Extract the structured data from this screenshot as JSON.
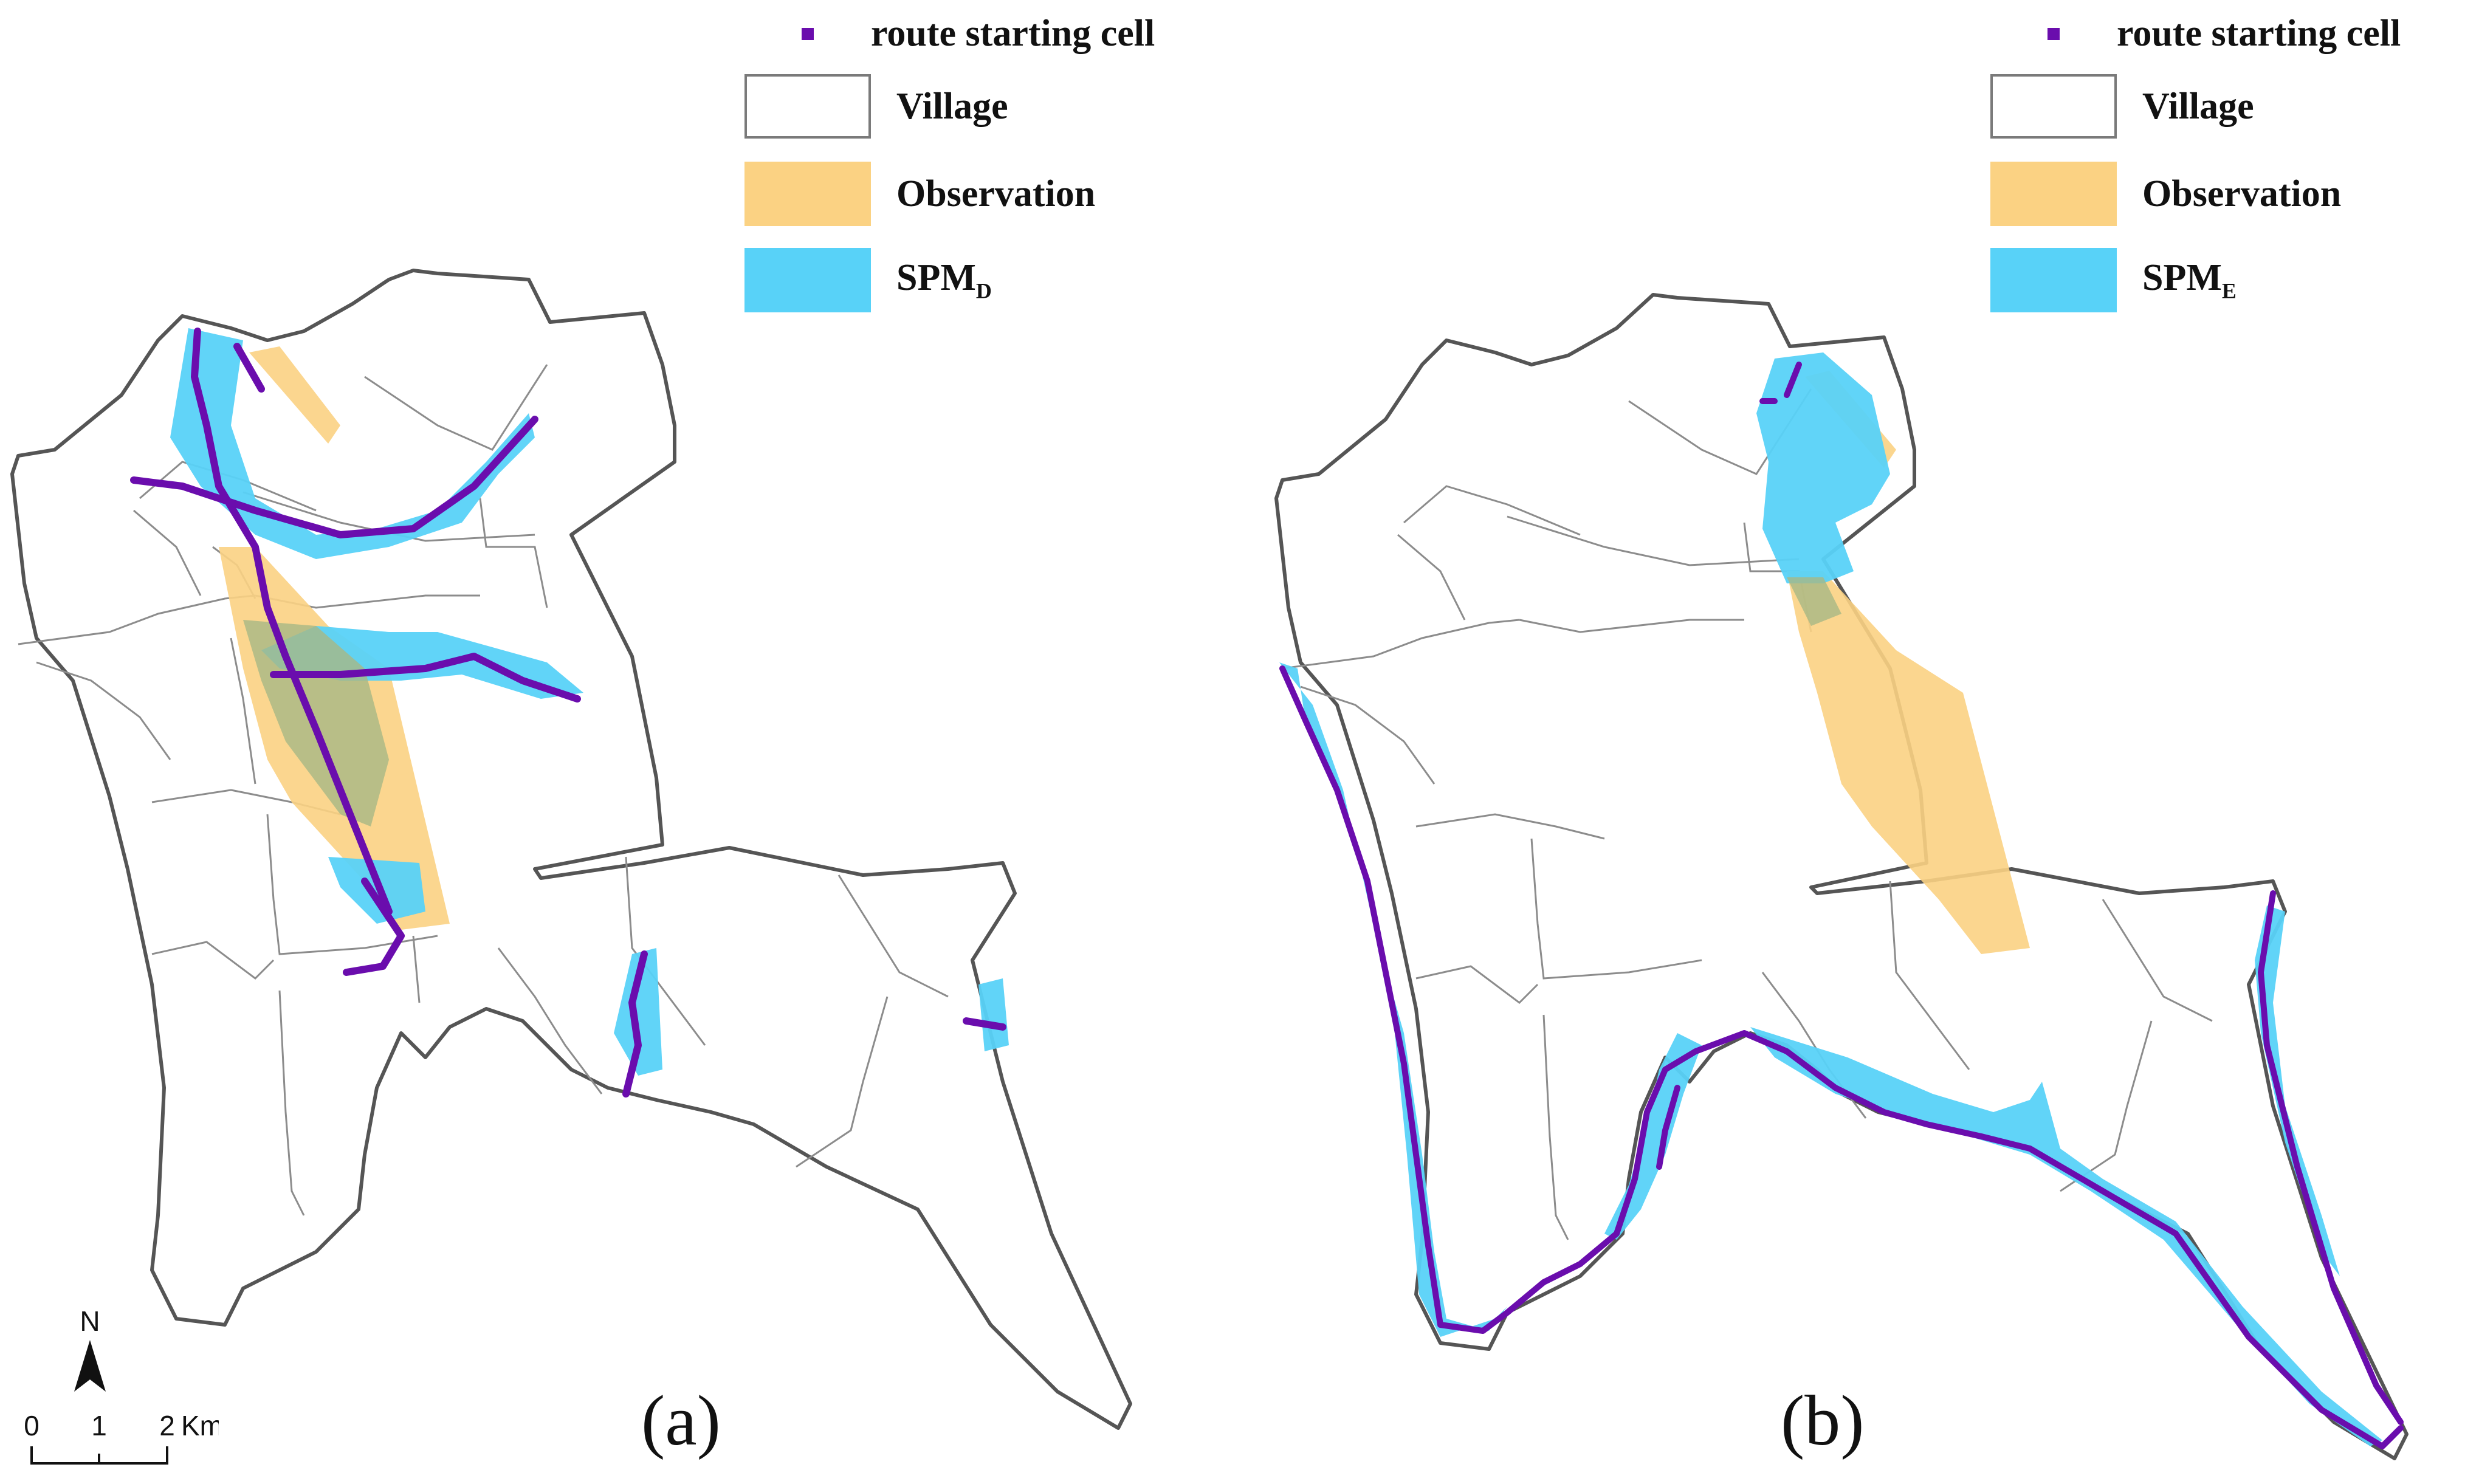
{
  "legend": {
    "start_label": "route starting cell",
    "village_label": "Village",
    "observation_label": "Observation",
    "spm_prefix": "SPM",
    "spm_a_sub": "D",
    "spm_b_sub": "E"
  },
  "panels": {
    "a_label": "(a)",
    "b_label": "(b)"
  },
  "north_arrow": {
    "label": "N"
  },
  "scale_bar": {
    "ticks": [
      "0",
      "1",
      "2"
    ],
    "unit": "Km"
  },
  "colors": {
    "village_boundary": "#8c8c8c",
    "outer_boundary": "#555555",
    "observation": "#fbd283",
    "spm": "#58d2f8",
    "route": "#6a0dad"
  }
}
